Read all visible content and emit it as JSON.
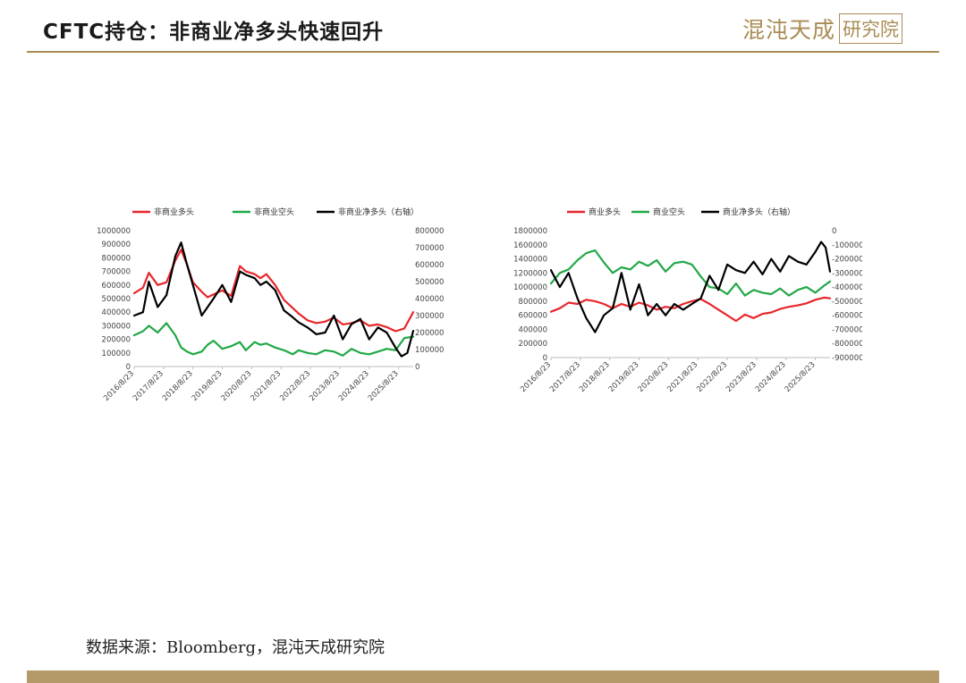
{
  "header": {
    "title": "CFTC持仓：非商业净多头快速回升",
    "logo_text": "混沌天成",
    "logo_box_text": "研究院"
  },
  "footer": {
    "source": "数据来源：Bloomberg，混沌天成研究院"
  },
  "colors": {
    "accent": "#a98c55",
    "red": "#e8262c",
    "green": "#21a846",
    "black": "#000000"
  },
  "chart_data": [
    {
      "type": "line",
      "legend": [
        "非商业多头",
        "非商业空头",
        "非商业净多头（右轴）"
      ],
      "x_ticks": [
        "2016/8/23",
        "2017/8/23",
        "2018/8/23",
        "2019/8/23",
        "2020/8/23",
        "2021/8/23",
        "2022/8/23",
        "2023/8/23",
        "2024/8/23",
        "2025/8/23"
      ],
      "ylim": [
        0,
        1000000
      ],
      "y_ticks": [
        0,
        100000,
        200000,
        300000,
        400000,
        500000,
        600000,
        700000,
        800000,
        900000,
        1000000
      ],
      "ylim_right": [
        0,
        800000
      ],
      "y_ticks_right": [
        0,
        100000,
        200000,
        300000,
        400000,
        500000,
        600000,
        700000,
        800000
      ],
      "x_start": 2016.5,
      "x_end": 2026.0,
      "series": [
        {
          "name": "非商业多头",
          "axis": "left",
          "color": "#e8262c",
          "x": [
            2016.5,
            2016.8,
            2017.0,
            2017.3,
            2017.6,
            2017.9,
            2018.1,
            2018.3,
            2018.5,
            2018.8,
            2019.0,
            2019.2,
            2019.5,
            2019.8,
            2020.1,
            2020.3,
            2020.6,
            2020.8,
            2021.0,
            2021.3,
            2021.6,
            2021.9,
            2022.1,
            2022.4,
            2022.7,
            2023.0,
            2023.3,
            2023.6,
            2023.9,
            2024.2,
            2024.5,
            2024.8,
            2025.1,
            2025.4,
            2025.7,
            2026.0
          ],
          "values": [
            540000,
            580000,
            690000,
            600000,
            620000,
            780000,
            860000,
            750000,
            620000,
            550000,
            510000,
            530000,
            560000,
            520000,
            740000,
            700000,
            680000,
            650000,
            680000,
            600000,
            490000,
            430000,
            390000,
            340000,
            320000,
            330000,
            360000,
            310000,
            320000,
            340000,
            300000,
            310000,
            290000,
            260000,
            280000,
            400000
          ]
        },
        {
          "name": "非商业空头",
          "axis": "left",
          "color": "#21a846",
          "x": [
            2016.5,
            2016.8,
            2017.0,
            2017.3,
            2017.6,
            2017.9,
            2018.1,
            2018.3,
            2018.5,
            2018.8,
            2019.0,
            2019.2,
            2019.5,
            2019.8,
            2020.1,
            2020.3,
            2020.6,
            2020.8,
            2021.0,
            2021.3,
            2021.6,
            2021.9,
            2022.1,
            2022.4,
            2022.7,
            2023.0,
            2023.3,
            2023.6,
            2023.9,
            2024.2,
            2024.5,
            2024.8,
            2025.1,
            2025.4,
            2025.7,
            2026.0
          ],
          "values": [
            230000,
            260000,
            300000,
            250000,
            320000,
            230000,
            140000,
            110000,
            90000,
            110000,
            160000,
            190000,
            130000,
            150000,
            180000,
            120000,
            180000,
            160000,
            170000,
            140000,
            120000,
            90000,
            120000,
            100000,
            90000,
            120000,
            110000,
            80000,
            130000,
            100000,
            90000,
            110000,
            130000,
            120000,
            210000,
            220000
          ]
        },
        {
          "name": "非商业净多头（右轴）",
          "axis": "right",
          "color": "#000000",
          "x": [
            2016.5,
            2016.8,
            2017.0,
            2017.3,
            2017.6,
            2017.9,
            2018.1,
            2018.3,
            2018.5,
            2018.8,
            2019.0,
            2019.2,
            2019.5,
            2019.8,
            2020.1,
            2020.3,
            2020.6,
            2020.8,
            2021.0,
            2021.3,
            2021.6,
            2021.9,
            2022.1,
            2022.4,
            2022.7,
            2023.0,
            2023.3,
            2023.6,
            2023.9,
            2024.2,
            2024.5,
            2024.8,
            2025.1,
            2025.4,
            2025.6,
            2025.8,
            2026.0
          ],
          "values": [
            300000,
            320000,
            500000,
            350000,
            420000,
            650000,
            730000,
            600000,
            480000,
            300000,
            350000,
            400000,
            480000,
            380000,
            560000,
            540000,
            520000,
            480000,
            500000,
            450000,
            330000,
            290000,
            260000,
            230000,
            190000,
            200000,
            300000,
            160000,
            250000,
            280000,
            160000,
            230000,
            200000,
            110000,
            60000,
            80000,
            210000
          ]
        }
      ]
    },
    {
      "type": "line",
      "legend": [
        "商业多头",
        "商业空头",
        "商业净多头（右轴）"
      ],
      "x_ticks": [
        "2016/8/23",
        "2017/8/23",
        "2018/8/23",
        "2019/8/23",
        "2020/8/23",
        "2021/8/23",
        "2022/8/23",
        "2023/8/23",
        "2024/8/23",
        "2025/8/23"
      ],
      "ylim": [
        0,
        1800000
      ],
      "y_ticks": [
        0,
        200000,
        400000,
        600000,
        800000,
        1000000,
        1200000,
        1400000,
        1600000,
        1800000
      ],
      "ylim_right": [
        -900000,
        0
      ],
      "y_ticks_right": [
        -900000,
        -800000,
        -700000,
        -600000,
        -500000,
        -400000,
        -300000,
        -200000,
        -100000,
        0
      ],
      "x_start": 2016.5,
      "x_end": 2026.0,
      "series": [
        {
          "name": "商业多头",
          "axis": "left",
          "color": "#e8262c",
          "x": [
            2016.5,
            2016.8,
            2017.1,
            2017.4,
            2017.7,
            2018.0,
            2018.3,
            2018.6,
            2018.9,
            2019.2,
            2019.5,
            2019.8,
            2020.1,
            2020.4,
            2020.7,
            2021.0,
            2021.3,
            2021.6,
            2021.9,
            2022.2,
            2022.5,
            2022.8,
            2023.1,
            2023.4,
            2023.7,
            2024.0,
            2024.3,
            2024.6,
            2024.9,
            2025.2,
            2025.5,
            2025.8,
            2026.0
          ],
          "values": [
            650000,
            700000,
            780000,
            760000,
            820000,
            800000,
            760000,
            700000,
            760000,
            720000,
            780000,
            740000,
            680000,
            720000,
            700000,
            760000,
            800000,
            830000,
            760000,
            680000,
            600000,
            520000,
            610000,
            560000,
            620000,
            640000,
            690000,
            720000,
            740000,
            770000,
            820000,
            850000,
            840000
          ]
        },
        {
          "name": "商业空头",
          "axis": "left",
          "color": "#21a846",
          "x": [
            2016.5,
            2016.8,
            2017.1,
            2017.4,
            2017.7,
            2018.0,
            2018.3,
            2018.6,
            2018.9,
            2019.2,
            2019.5,
            2019.8,
            2020.1,
            2020.4,
            2020.7,
            2021.0,
            2021.3,
            2021.6,
            2021.9,
            2022.2,
            2022.5,
            2022.8,
            2023.1,
            2023.4,
            2023.7,
            2024.0,
            2024.3,
            2024.6,
            2024.9,
            2025.2,
            2025.5,
            2025.8,
            2026.0
          ],
          "values": [
            1050000,
            1200000,
            1250000,
            1380000,
            1480000,
            1520000,
            1350000,
            1200000,
            1280000,
            1250000,
            1360000,
            1300000,
            1380000,
            1220000,
            1340000,
            1360000,
            1320000,
            1150000,
            1000000,
            980000,
            900000,
            1050000,
            880000,
            960000,
            920000,
            900000,
            980000,
            880000,
            960000,
            1000000,
            920000,
            1020000,
            1080000
          ]
        },
        {
          "name": "商业净多头（右轴）",
          "axis": "right",
          "color": "#000000",
          "x": [
            2016.5,
            2016.8,
            2017.1,
            2017.4,
            2017.7,
            2018.0,
            2018.3,
            2018.6,
            2018.9,
            2019.2,
            2019.5,
            2019.8,
            2020.1,
            2020.4,
            2020.7,
            2021.0,
            2021.3,
            2021.6,
            2021.9,
            2022.2,
            2022.5,
            2022.8,
            2023.1,
            2023.4,
            2023.7,
            2024.0,
            2024.3,
            2024.6,
            2024.9,
            2025.2,
            2025.5,
            2025.7,
            2025.85,
            2026.0
          ],
          "values": [
            -280000,
            -400000,
            -300000,
            -480000,
            -620000,
            -720000,
            -600000,
            -550000,
            -300000,
            -560000,
            -380000,
            -600000,
            -520000,
            -600000,
            -520000,
            -560000,
            -520000,
            -480000,
            -320000,
            -420000,
            -240000,
            -280000,
            -300000,
            -220000,
            -310000,
            -200000,
            -290000,
            -180000,
            -220000,
            -240000,
            -150000,
            -80000,
            -120000,
            -290000
          ]
        }
      ]
    }
  ]
}
